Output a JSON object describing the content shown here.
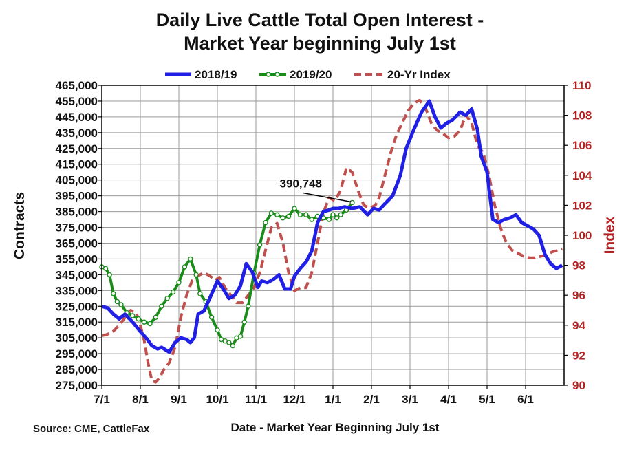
{
  "chart_data": {
    "type": "line",
    "title_line1": "Daily Live Cattle Total Open Interest -",
    "title_line2": "Market Year beginning July 1st",
    "xlabel": "Date - Market Year Beginning July 1st",
    "ylabel": "Contracts",
    "ylabel_right": "Index",
    "source": "Source: CME, CattleFax",
    "categories": [
      "7/1",
      "8/1",
      "9/1",
      "10/1",
      "11/1",
      "12/1",
      "1/1",
      "2/1",
      "3/1",
      "4/1",
      "5/1",
      "6/1"
    ],
    "ylim": [
      275000,
      465000
    ],
    "yticks": [
      "275,000",
      "285,000",
      "295,000",
      "305,000",
      "315,000",
      "325,000",
      "335,000",
      "345,000",
      "355,000",
      "365,000",
      "375,000",
      "385,000",
      "395,000",
      "405,000",
      "415,000",
      "425,000",
      "435,000",
      "445,000",
      "455,000",
      "465,000"
    ],
    "y2lim": [
      90,
      110
    ],
    "y2ticks": [
      "90",
      "92",
      "94",
      "96",
      "98",
      "100",
      "102",
      "104",
      "106",
      "108",
      "110"
    ],
    "legend": {
      "s1": "2018/19",
      "s2": "2019/20",
      "s3": "20-Yr Index"
    },
    "annotation": {
      "text": "390,748",
      "month": 6.5,
      "value": 390748
    },
    "series": [
      {
        "name": "2018/19",
        "axis": "left",
        "color": "#1f1fe6",
        "x": [
          0,
          0.15,
          0.3,
          0.45,
          0.6,
          0.8,
          1.0,
          1.15,
          1.3,
          1.45,
          1.55,
          1.75,
          1.9,
          2.05,
          2.2,
          2.3,
          2.4,
          2.5,
          2.65,
          2.8,
          3.0,
          3.15,
          3.3,
          3.45,
          3.6,
          3.75,
          3.9,
          4.05,
          4.15,
          4.3,
          4.45,
          4.6,
          4.75,
          4.9,
          5.0,
          5.15,
          5.3,
          5.45,
          5.6,
          5.75,
          5.9,
          6.0,
          6.15,
          6.3,
          6.5,
          6.7,
          6.9,
          7.05,
          7.2,
          7.35,
          7.55,
          7.75,
          7.9,
          8.1,
          8.3,
          8.5,
          8.65,
          8.8,
          8.95,
          9.1,
          9.3,
          9.45,
          9.6,
          9.75,
          9.85,
          10.0,
          10.15,
          10.3,
          10.45,
          10.6,
          10.75,
          10.9,
          11.05,
          11.2,
          11.35,
          11.5,
          11.65,
          11.8,
          11.95
        ],
        "values": [
          325000,
          324000,
          320000,
          317000,
          320000,
          315000,
          309000,
          305000,
          300000,
          298000,
          299000,
          296000,
          302000,
          305000,
          304000,
          302000,
          305000,
          320000,
          322000,
          330000,
          341000,
          336000,
          330000,
          332000,
          338000,
          352000,
          347000,
          337000,
          341000,
          340000,
          342000,
          345000,
          336000,
          336000,
          344000,
          349000,
          353000,
          360000,
          378000,
          385000,
          386000,
          387000,
          387000,
          388000,
          387000,
          388000,
          383000,
          387000,
          386000,
          390000,
          395000,
          408000,
          425000,
          437000,
          448000,
          455000,
          445000,
          438000,
          441000,
          443000,
          448000,
          446000,
          450000,
          437000,
          420000,
          410000,
          380000,
          378000,
          380000,
          381000,
          383000,
          378000,
          376000,
          374000,
          370000,
          358000,
          352000,
          349000,
          351000
        ]
      },
      {
        "name": "2019/20",
        "axis": "left",
        "color": "#1a8c1a",
        "x": [
          0,
          0.1,
          0.2,
          0.3,
          0.4,
          0.5,
          0.65,
          0.8,
          0.95,
          1.1,
          1.25,
          1.4,
          1.55,
          1.7,
          1.85,
          2.0,
          2.15,
          2.3,
          2.45,
          2.55,
          2.7,
          2.85,
          3.0,
          3.1,
          3.2,
          3.3,
          3.4,
          3.5,
          3.6,
          3.7,
          3.8,
          3.95,
          4.1,
          4.25,
          4.4,
          4.55,
          4.7,
          4.85,
          5.0,
          5.15,
          5.3,
          5.45,
          5.6,
          5.75,
          5.9,
          6.0,
          6.1,
          6.2,
          6.35,
          6.5
        ],
        "values": [
          350000,
          349000,
          345000,
          333000,
          328000,
          326000,
          321000,
          319000,
          317000,
          315000,
          314000,
          318000,
          325000,
          330000,
          334000,
          340000,
          350000,
          355000,
          345000,
          333000,
          328000,
          318000,
          310000,
          304000,
          303000,
          302000,
          300000,
          305000,
          306000,
          315000,
          325000,
          346000,
          364000,
          378000,
          384000,
          383000,
          381000,
          382000,
          387000,
          383000,
          383000,
          380000,
          382000,
          381000,
          380000,
          383000,
          381000,
          383000,
          386000,
          390748
        ]
      },
      {
        "name": "20-Yr Index",
        "axis": "right",
        "color": "#c0504d",
        "x": [
          0,
          0.15,
          0.3,
          0.45,
          0.6,
          0.75,
          0.9,
          1.0,
          1.1,
          1.2,
          1.3,
          1.4,
          1.5,
          1.6,
          1.75,
          1.9,
          2.05,
          2.2,
          2.35,
          2.5,
          2.65,
          2.8,
          2.95,
          3.05,
          3.2,
          3.35,
          3.5,
          3.65,
          3.8,
          3.95,
          4.1,
          4.25,
          4.4,
          4.55,
          4.7,
          4.85,
          5.0,
          5.15,
          5.3,
          5.45,
          5.6,
          5.75,
          5.9,
          6.05,
          6.2,
          6.35,
          6.5,
          6.65,
          6.8,
          6.95,
          7.1,
          7.2,
          7.35,
          7.5,
          7.65,
          7.8,
          7.95,
          8.1,
          8.25,
          8.4,
          8.55,
          8.7,
          8.85,
          9.0,
          9.15,
          9.3,
          9.45,
          9.6,
          9.75,
          9.9,
          10.05,
          10.2,
          10.35,
          10.5,
          10.65,
          10.8,
          10.95,
          11.1,
          11.25,
          11.4,
          11.55,
          11.7,
          11.85,
          11.95
        ],
        "values": [
          93.3,
          93.4,
          93.6,
          94.0,
          94.5,
          95.0,
          94.8,
          94.0,
          93.0,
          91.5,
          90.3,
          90.2,
          90.5,
          91.0,
          91.5,
          92.5,
          94.5,
          96.0,
          97.0,
          97.3,
          97.5,
          97.3,
          97.0,
          97.2,
          96.5,
          96.0,
          95.5,
          95.5,
          96.0,
          96.5,
          97.5,
          99.0,
          100.5,
          100.8,
          99.5,
          97.5,
          96.3,
          96.5,
          96.5,
          97.5,
          99.5,
          101.5,
          102.5,
          102.3,
          103.0,
          104.5,
          104.2,
          103.0,
          102.0,
          101.8,
          102.0,
          102.5,
          104.0,
          105.5,
          106.7,
          107.5,
          108.3,
          108.8,
          109.0,
          108.5,
          107.5,
          107.0,
          106.8,
          106.5,
          106.6,
          107.0,
          108.0,
          107.5,
          106.0,
          105.5,
          104.0,
          102.0,
          100.5,
          99.5,
          99.0,
          98.8,
          98.6,
          98.5,
          98.5,
          98.6,
          98.7,
          98.9,
          99.0,
          99.1
        ]
      }
    ]
  }
}
